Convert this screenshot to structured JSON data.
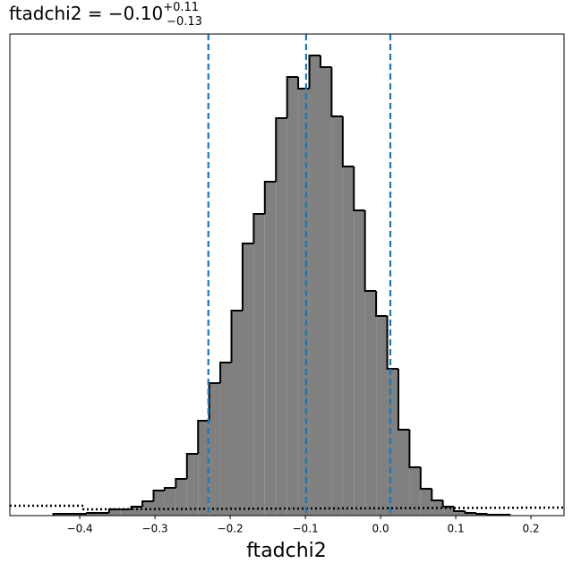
{
  "chart_data": {
    "type": "histogram",
    "title": "ftadchi2 = −0.10",
    "title_sup": "+0.11",
    "title_sub": "−0.13",
    "xlabel": "ftadchi2",
    "bins": [
      -0.4351,
      -0.4203,
      -0.4055,
      -0.3907,
      -0.3759,
      -0.3611,
      -0.3463,
      -0.3315,
      -0.3167,
      -0.3019,
      -0.2871,
      -0.2723,
      -0.2575,
      -0.2427,
      -0.2279,
      -0.2131,
      -0.1983,
      -0.1835,
      -0.1687,
      -0.1539,
      -0.1391,
      -0.1243,
      -0.1095,
      -0.0947,
      -0.0799,
      -0.0651,
      -0.0503,
      -0.0355,
      -0.0207,
      -0.0059,
      0.0089,
      0.0237,
      0.0385,
      0.0533,
      0.0681,
      0.0829,
      0.0977,
      0.1125,
      0.1273,
      0.1421,
      0.1569,
      0.1717
    ],
    "values": [
      2,
      2,
      2,
      3,
      3,
      7,
      7,
      10,
      16,
      28,
      31,
      41,
      69,
      106,
      148,
      171,
      229,
      304,
      337,
      373,
      444,
      490,
      477,
      514,
      501,
      446,
      390,
      341,
      251,
      223,
      164,
      96,
      54,
      30,
      17,
      10,
      5,
      3,
      2,
      1,
      1
    ],
    "color": "#808080",
    "edgecolor": "#000000",
    "xlim": [
      -0.493,
      0.244
    ],
    "ylim": [
      0,
      538
    ],
    "xticks": [
      {
        "value": -0.4,
        "label": "−0.4"
      },
      {
        "value": -0.3,
        "label": "−0.3"
      },
      {
        "value": -0.2,
        "label": "−0.2"
      },
      {
        "value": -0.1,
        "label": "−0.1"
      },
      {
        "value": 0.0,
        "label": "0.0"
      },
      0.1,
      0.2
    ],
    "quantiles": {
      "values": [
        -0.229,
        -0.099,
        0.013
      ],
      "color": "#1f77b4"
    },
    "prior": {
      "x": [
        -0.493,
        -0.395,
        -0.395,
        0.244
      ],
      "values": [
        11,
        11,
        7,
        9
      ],
      "color": "#000000"
    }
  }
}
